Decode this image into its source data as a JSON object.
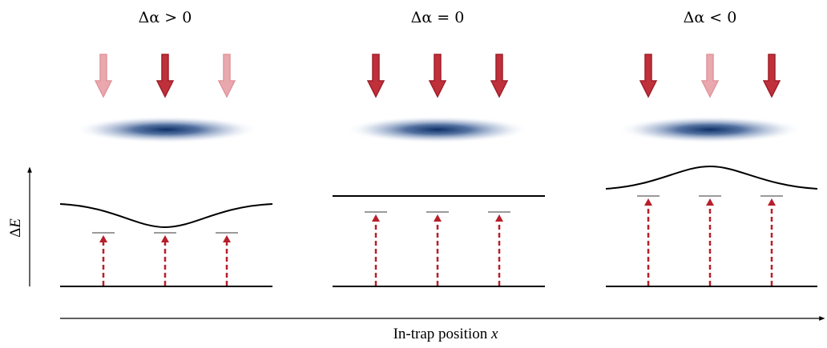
{
  "colors": {
    "laser_strong": "#c0303a",
    "laser_faint": "#e9a8ae",
    "laser_stroke_strong": "#a01f2a",
    "laser_stroke_faint": "#e0959c",
    "cloud": "#0d2f66",
    "transition_arrow": "#b81e2b",
    "level_marker": "#9a9a9a",
    "line": "#000000"
  },
  "y_axis": {
    "label_symbol": "Δ",
    "label_var": "E"
  },
  "x_axis": {
    "label_text": "In-trap position ",
    "label_var": "x"
  },
  "panels": [
    {
      "id": "positive",
      "title_symbol": "Δα",
      "title_relation": " > 0",
      "beams": [
        "faint",
        "strong",
        "faint"
      ],
      "excited_shape": "dip"
    },
    {
      "id": "zero",
      "title_symbol": "Δα",
      "title_relation": " = 0",
      "beams": [
        "strong",
        "strong",
        "strong"
      ],
      "excited_shape": "flat"
    },
    {
      "id": "negative",
      "title_symbol": "Δα",
      "title_relation": " < 0",
      "beams": [
        "strong",
        "faint",
        "strong"
      ],
      "excited_shape": "bump"
    }
  ]
}
